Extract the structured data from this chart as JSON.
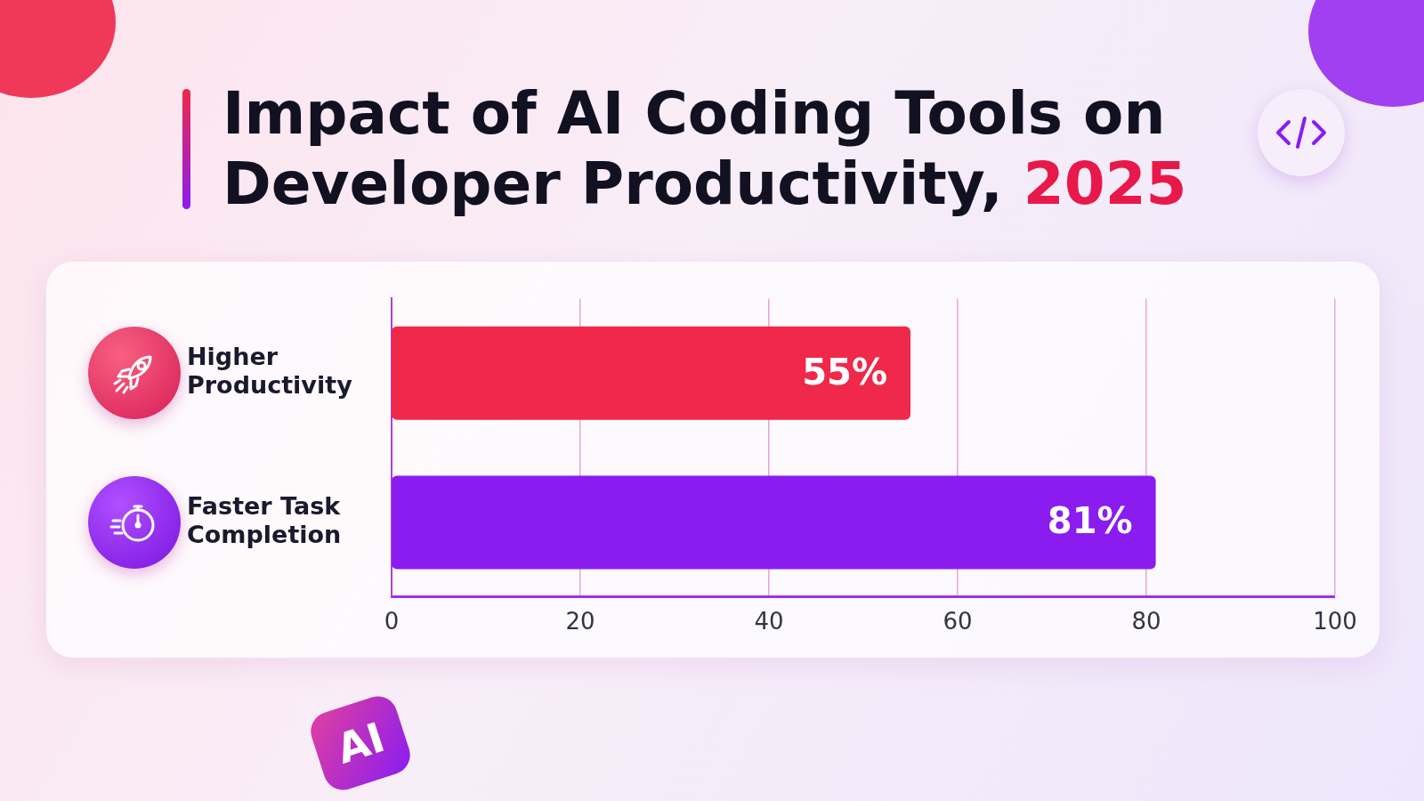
{
  "chart_data": {
    "type": "bar",
    "orientation": "horizontal",
    "title": "Impact of AI Coding Tools on Developer Productivity, 2025",
    "categories": [
      "Higher Productivity",
      "Faster Task Completion"
    ],
    "values": [
      55,
      81
    ],
    "value_labels": [
      "55%",
      "81%"
    ],
    "colors": [
      "#f0284a",
      "#8a1cf0"
    ],
    "xlim": [
      0,
      100
    ],
    "xticks": [
      0,
      20,
      40,
      60,
      80,
      100
    ],
    "grid": "x",
    "legend": false,
    "annotations": [
      "AI"
    ]
  }
}
